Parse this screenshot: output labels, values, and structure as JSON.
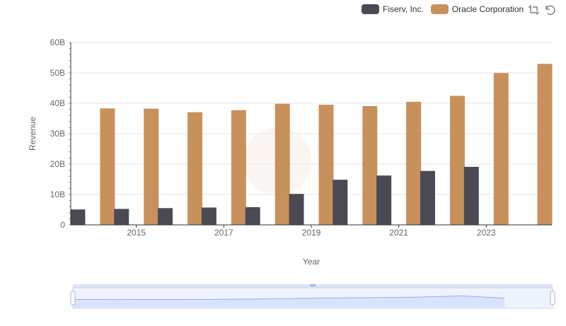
{
  "colors": {
    "accent": "#c8915b",
    "dark": "#4a4a55",
    "grid": "#e6e6e6",
    "axis": "#666666",
    "zoom_fill": "#d9e3fb",
    "zoom_line": "#8fb0f7"
  },
  "legend": {
    "items": [
      {
        "label": "Fiserv, Inc.",
        "color": "#4a4a55"
      },
      {
        "label": "Oracle Corporation",
        "color": "#c8915b"
      }
    ]
  },
  "toolbox": {
    "icons": [
      "zoom-icon",
      "zoom-reset-icon"
    ]
  },
  "chart_data": {
    "type": "bar",
    "xlabel": "Year",
    "ylabel": "Revenue",
    "ylim": [
      0,
      60000000000
    ],
    "yticks": [
      "0",
      "10B",
      "20B",
      "30B",
      "40B",
      "50B",
      "60B"
    ],
    "x_tick_labels": [
      "2015",
      "2017",
      "2019",
      "2021",
      "2023"
    ],
    "categories": [
      "2014",
      "2015",
      "2016",
      "2017",
      "2018",
      "2019",
      "2020",
      "2021",
      "2022",
      "2023",
      "2024"
    ],
    "series": [
      {
        "name": "Fiserv, Inc.",
        "color": "#4a4a55",
        "values": [
          5070000000,
          5250000000,
          5510000000,
          5700000000,
          5820000000,
          10190000000,
          14850000000,
          16230000000,
          17740000000,
          19090000000,
          null
        ]
      },
      {
        "name": "Oracle Corporation",
        "color": "#c8915b",
        "values": [
          38300000000,
          38230000000,
          37050000000,
          37730000000,
          39830000000,
          39510000000,
          39070000000,
          40480000000,
          42440000000,
          49950000000,
          52960000000
        ]
      }
    ],
    "grid": true,
    "legend_position": "top-right",
    "datazoom": {
      "start_percent": 0,
      "end_percent": 100
    }
  }
}
